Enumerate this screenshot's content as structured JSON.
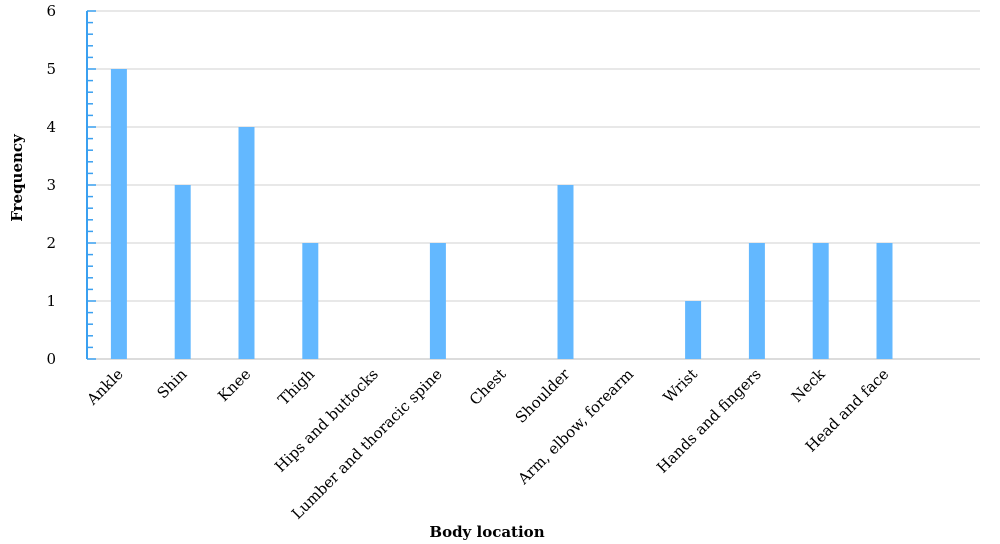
{
  "chart_data": {
    "type": "bar",
    "categories": [
      "Ankle",
      "Shin",
      "Knee",
      "Thigh",
      "Hips and buttocks",
      "Lumber and thoracic spine",
      "Chest",
      "Shoulder",
      "Arm, elbow, forearm",
      "Wrist",
      "Hands and fingers",
      "Neck",
      "Head and face"
    ],
    "values": [
      5,
      3,
      4,
      2,
      0,
      2,
      0,
      3,
      0,
      1,
      2,
      2,
      2
    ],
    "xlabel": "Body location",
    "ylabel": "Frequency",
    "ylim": [
      0,
      6
    ],
    "yticks": [
      "0",
      "1",
      "2",
      "3",
      "4",
      "5",
      "6"
    ],
    "grid": true,
    "colors": {
      "bar": "#63b8ff",
      "axis": "#3aa0f0",
      "grid": "#d9d9d9"
    }
  }
}
